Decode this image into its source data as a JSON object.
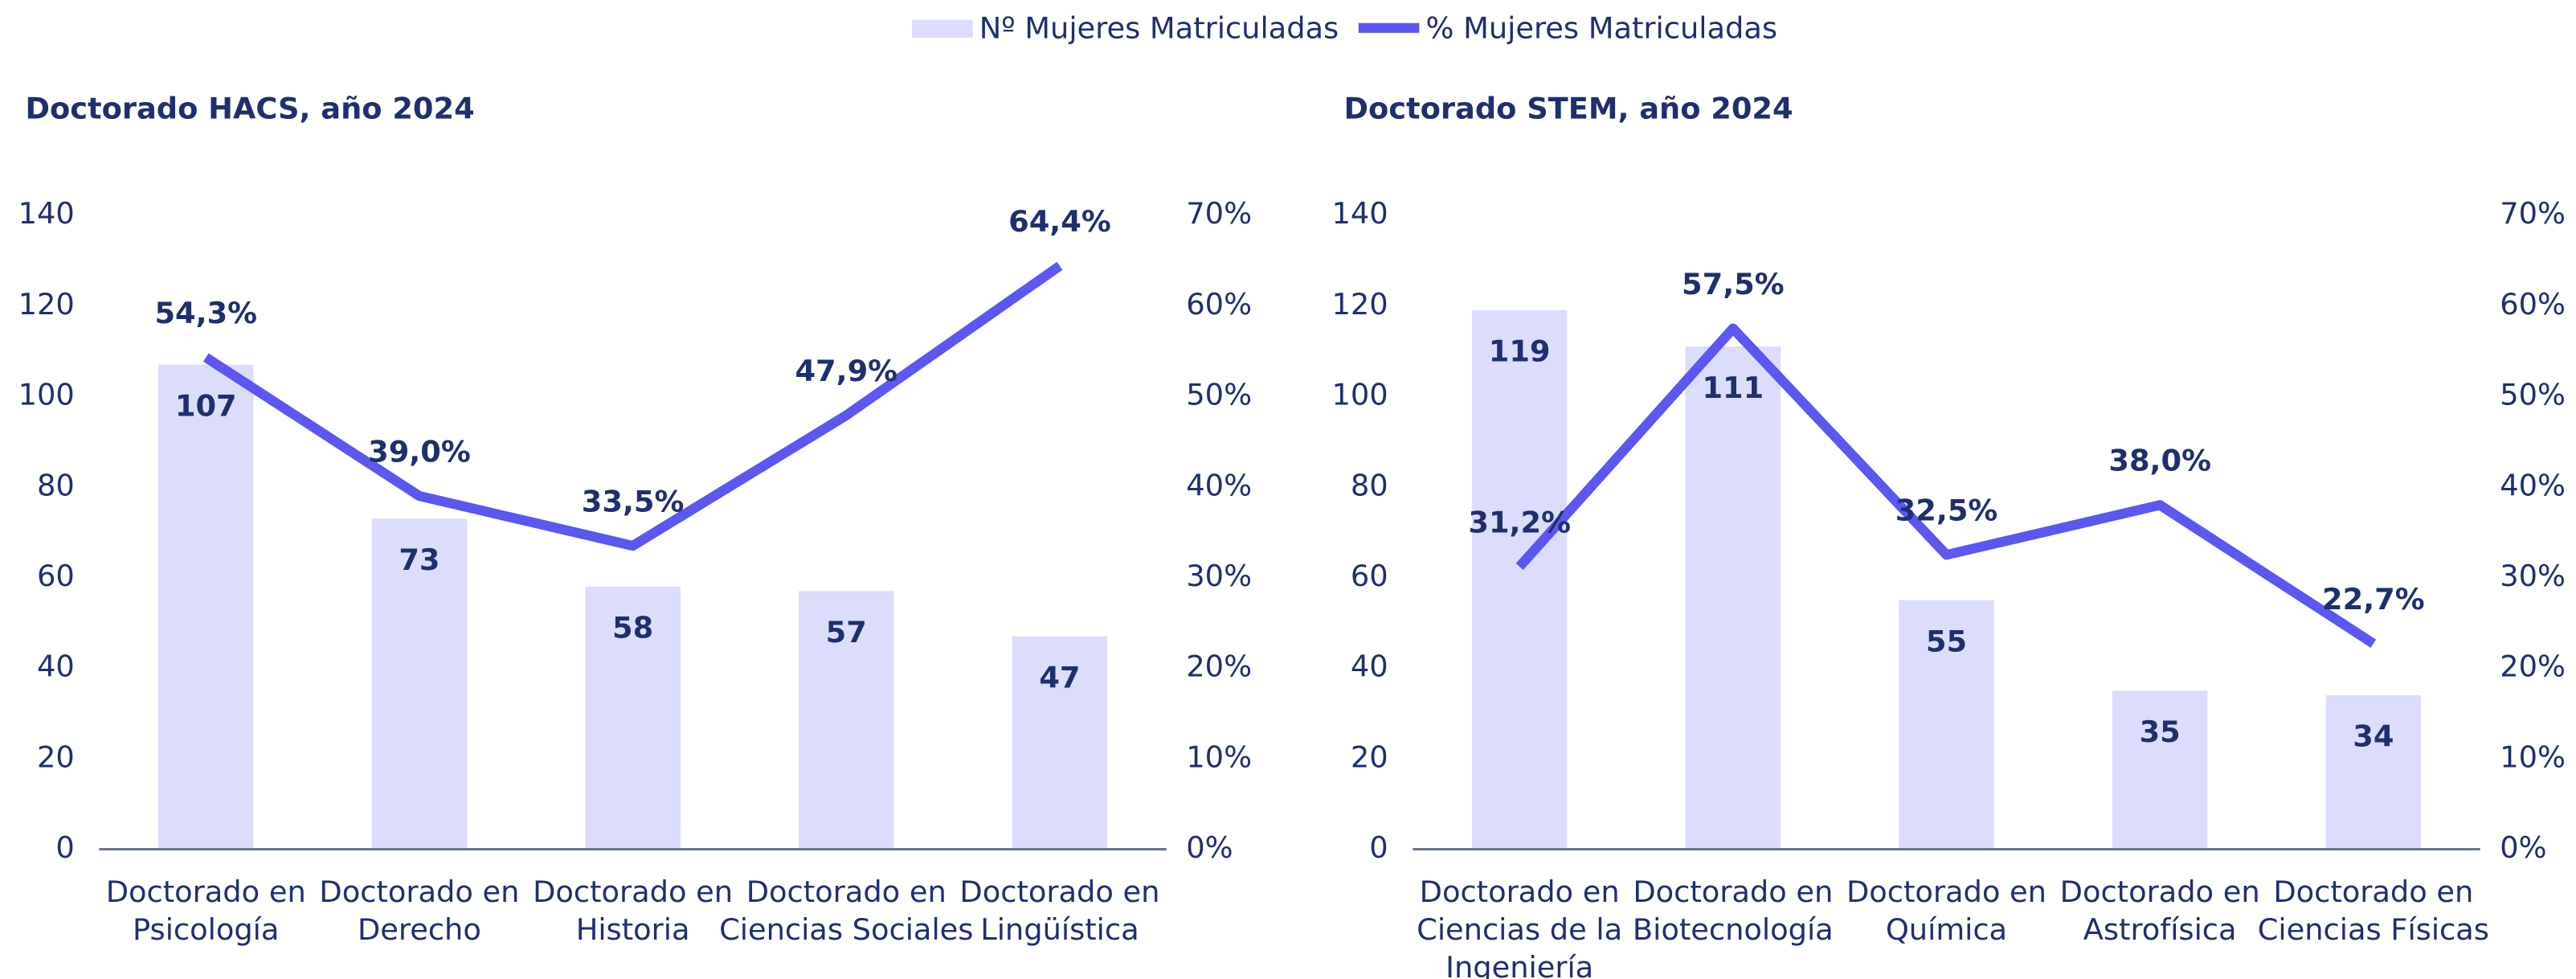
{
  "legend": [
    {
      "name": "Nº Mujeres Matriculadas",
      "color": "#dcdcfc",
      "marker": "bar"
    },
    {
      "name": "% Mujeres Matriculadas",
      "color": "#5b57f0",
      "marker": "line"
    }
  ],
  "chart_data": [
    {
      "type": "bar_line",
      "title": "Doctorado HACS, año 2024",
      "categories": [
        [
          "Doctorado en",
          "Psicología"
        ],
        [
          "Doctorado en",
          "Derecho"
        ],
        [
          "Doctorado en",
          "Historia"
        ],
        [
          "Doctorado en",
          "Ciencias Sociales"
        ],
        [
          "Doctorado en",
          "Lingüística"
        ]
      ],
      "series": [
        {
          "color": "#dcdcfc",
          "values": [
            107,
            73,
            58,
            57,
            47
          ]
        },
        {
          "color": "#5b57f0",
          "axis": "y2",
          "values": [
            54.3,
            39.0,
            33.5,
            47.9,
            64.4
          ],
          "value_labels": [
            "54,3%",
            "39,0%",
            "33,5%",
            "47,9%",
            "64,4%"
          ]
        }
      ],
      "ylim": [
        0,
        140
      ],
      "yticks": [
        0,
        20,
        40,
        60,
        80,
        100,
        120,
        140
      ],
      "y2lim": [
        0,
        70
      ],
      "y2ticks": [
        {
          "value": 0,
          "label": "0%"
        },
        {
          "value": 10,
          "label": "10%"
        },
        {
          "value": 20,
          "label": "20%"
        },
        {
          "value": 30,
          "label": "30%"
        },
        {
          "value": 40,
          "label": "40%"
        },
        {
          "value": 50,
          "label": "50%"
        },
        {
          "value": 60,
          "label": "60%"
        },
        {
          "value": 70,
          "label": "70%"
        }
      ]
    },
    {
      "type": "bar_line",
      "title": "Doctorado STEM, año 2024",
      "categories": [
        [
          "Doctorado en",
          "Ciencias de la",
          "Ingeniería"
        ],
        [
          "Doctorado en",
          "Biotecnología"
        ],
        [
          "Doctorado en",
          "Química"
        ],
        [
          "Doctorado en",
          "Astrofísica"
        ],
        [
          "Doctorado en",
          "Ciencias Físicas"
        ]
      ],
      "series": [
        {
          "color": "#dcdcfc",
          "values": [
            119,
            111,
            55,
            35,
            34
          ]
        },
        {
          "color": "#5b57f0",
          "axis": "y2",
          "values": [
            31.2,
            57.5,
            32.5,
            38.0,
            22.7
          ],
          "value_labels": [
            "31,2%",
            "57,5%",
            "32,5%",
            "38,0%",
            "22,7%"
          ]
        }
      ],
      "ylim": [
        0,
        140
      ],
      "yticks": [
        0,
        20,
        40,
        60,
        80,
        100,
        120,
        140
      ],
      "y2lim": [
        0,
        70
      ],
      "y2ticks": [
        {
          "value": 0,
          "label": "0%"
        },
        {
          "value": 10,
          "label": "10%"
        },
        {
          "value": 20,
          "label": "20%"
        },
        {
          "value": 30,
          "label": "30%"
        },
        {
          "value": 40,
          "label": "40%"
        },
        {
          "value": 50,
          "label": "50%"
        },
        {
          "value": 60,
          "label": "60%"
        },
        {
          "value": 70,
          "label": "70%"
        }
      ]
    }
  ]
}
